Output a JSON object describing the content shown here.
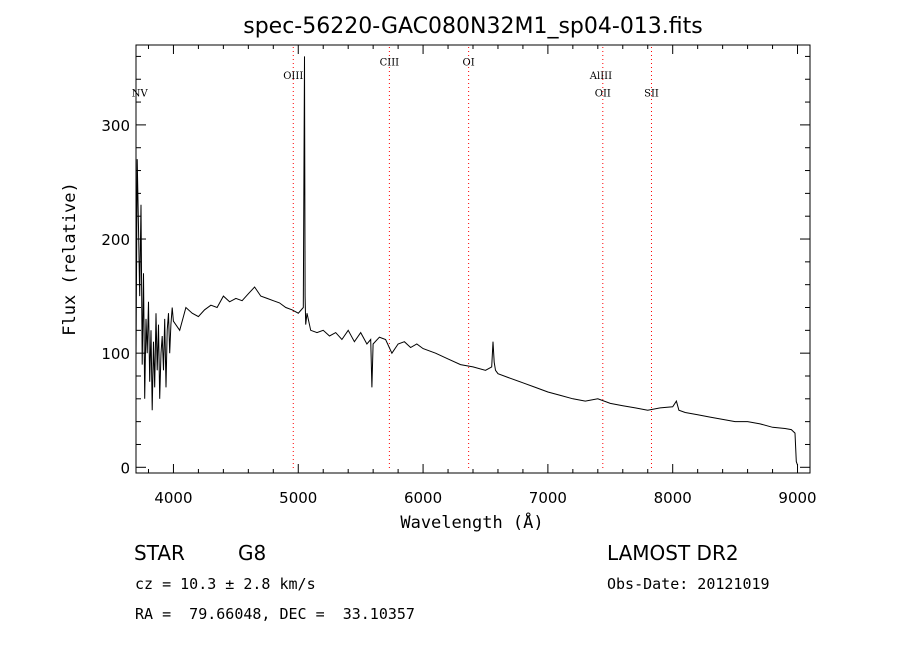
{
  "chart_data": {
    "type": "line",
    "title": "spec-56220-GAC080N32M1_sp04-013.fits",
    "xlabel": "Wavelength (Å)",
    "ylabel": "Flux (relative)",
    "xlim": [
      3700,
      9100
    ],
    "ylim": [
      -5,
      370
    ],
    "xticks": [
      4000,
      5000,
      6000,
      7000,
      8000,
      9000
    ],
    "yticks": [
      0,
      100,
      200,
      300
    ],
    "grid": false,
    "line_color": "#000000",
    "marker_color": "#ff0000",
    "series": [
      {
        "x": [
          3700,
          3710,
          3720,
          3730,
          3740,
          3750,
          3760,
          3770,
          3780,
          3790,
          3800,
          3810,
          3820,
          3830,
          3840,
          3850,
          3860,
          3870,
          3880,
          3890,
          3900,
          3910,
          3920,
          3930,
          3940,
          3950,
          3960,
          3970,
          3980,
          3990,
          4000,
          4050,
          4100,
          4150,
          4200,
          4250,
          4300,
          4350,
          4400,
          4450,
          4500,
          4550,
          4600,
          4650,
          4700,
          4750,
          4800,
          4850,
          4900,
          4950,
          5000,
          5040,
          5050,
          5055,
          5060,
          5070,
          5100,
          5150,
          5200,
          5250,
          5300,
          5350,
          5400,
          5450,
          5500,
          5550,
          5580,
          5590,
          5600,
          5650,
          5700,
          5750,
          5800,
          5850,
          5900,
          5950,
          6000,
          6100,
          6200,
          6300,
          6400,
          6500,
          6550,
          6560,
          6570,
          6580,
          6600,
          6700,
          6800,
          6900,
          7000,
          7100,
          7200,
          7300,
          7400,
          7500,
          7600,
          7700,
          7800,
          7900,
          8000,
          8030,
          8050,
          8100,
          8200,
          8300,
          8400,
          8500,
          8600,
          8700,
          8800,
          8900,
          8950,
          8980,
          8990,
          9000
        ],
        "y": [
          95,
          270,
          210,
          150,
          230,
          90,
          170,
          60,
          130,
          100,
          145,
          75,
          120,
          50,
          110,
          70,
          135,
          85,
          125,
          60,
          100,
          115,
          85,
          130,
          70,
          120,
          135,
          100,
          125,
          140,
          128,
          120,
          140,
          135,
          132,
          138,
          142,
          140,
          150,
          145,
          148,
          146,
          152,
          158,
          150,
          148,
          146,
          144,
          140,
          138,
          135,
          140,
          360,
          150,
          125,
          135,
          120,
          118,
          120,
          115,
          118,
          112,
          120,
          110,
          118,
          108,
          112,
          70,
          108,
          114,
          112,
          100,
          108,
          110,
          105,
          108,
          104,
          100,
          95,
          90,
          88,
          85,
          88,
          110,
          92,
          85,
          82,
          78,
          74,
          70,
          66,
          63,
          60,
          58,
          60,
          56,
          54,
          52,
          50,
          52,
          53,
          58,
          50,
          48,
          46,
          44,
          42,
          40,
          40,
          38,
          35,
          34,
          33,
          30,
          5,
          2
        ]
      }
    ],
    "annotations": [
      {
        "label": "NV",
        "x": 3730,
        "y": 325
      },
      {
        "label": "OIII",
        "x": 4960,
        "y": 340
      },
      {
        "label": "CIII",
        "x": 5730,
        "y": 352
      },
      {
        "label": "OI",
        "x": 6365,
        "y": 352
      },
      {
        "label": "AlIII",
        "x": 7425,
        "y": 340
      },
      {
        "label": "OII",
        "x": 7440,
        "y": 325
      },
      {
        "label": "SII",
        "x": 7830,
        "y": 325
      }
    ],
    "reference_lines": [
      4960,
      5730,
      6365,
      7440,
      7830
    ]
  },
  "info": {
    "class": "STAR",
    "subclass": "G8",
    "survey": "LAMOST DR2",
    "cz": "cz = 10.3 ± 2.8 km/s",
    "obs_date": "Obs-Date: 20121019",
    "coords": "RA =  79.66048, DEC =  33.10357"
  }
}
